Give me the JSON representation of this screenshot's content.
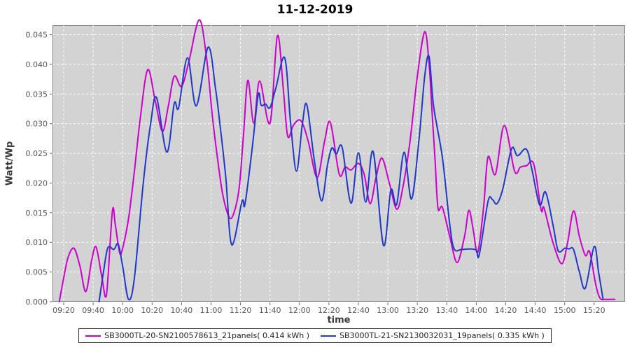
{
  "title": "11-12-2019",
  "y_axis": {
    "label": "Watt/Wp",
    "ticks": [
      "0.000",
      "0.005",
      "0.010",
      "0.015",
      "0.020",
      "0.025",
      "0.030",
      "0.035",
      "0.040",
      "0.045"
    ]
  },
  "x_axis": {
    "label": "time",
    "ticks": [
      "09:20",
      "09:40",
      "10:00",
      "10:20",
      "10:40",
      "11:00",
      "11:20",
      "11:40",
      "12:00",
      "12:20",
      "12:40",
      "13:00",
      "13:20",
      "13:40",
      "14:00",
      "14:20",
      "14:40",
      "15:00",
      "15:20"
    ]
  },
  "legend": [
    {
      "label": "SB3000TL-20-SN2100578613_21panels( 0.414 kWh )",
      "color": "#CC00CC"
    },
    {
      "label": "SB3000TL-21-SN2130032031_19panels( 0.335 kWh )",
      "color": "#2038C8"
    }
  ],
  "chart_data": {
    "type": "line",
    "title": "11-12-2019",
    "xlabel": "time",
    "ylabel": "Watt/Wp",
    "x_unit": "minutes since midnight",
    "xlim": [
      552.4,
      941
    ],
    "ylim": [
      0,
      0.0466
    ],
    "y_tick_step": 0.005,
    "x_tick_start": 560,
    "x_tick_step": 20,
    "grid": "white dashed lines on light gray plot background",
    "legend_position": "bottom center",
    "plot_bg_color": "#D3D3D3",
    "series": [
      {
        "name": "SB3000TL-20-SN2100578613_21panels( 0.414 kWh )",
        "color": "#CC00CC",
        "energy_kwh": 0.414,
        "points": [
          [
            557,
            0.0
          ],
          [
            560,
            0.004
          ],
          [
            563,
            0.0075
          ],
          [
            567,
            0.009
          ],
          [
            571,
            0.006
          ],
          [
            575,
            0.0017
          ],
          [
            579,
            0.007
          ],
          [
            582,
            0.0092
          ],
          [
            586,
            0.004
          ],
          [
            589,
            0.001
          ],
          [
            593,
            0.0152
          ],
          [
            595,
            0.013
          ],
          [
            598,
            0.0082
          ],
          [
            600,
            0.009
          ],
          [
            604,
            0.014
          ],
          [
            608,
            0.022
          ],
          [
            612,
            0.031
          ],
          [
            617,
            0.0391
          ],
          [
            622,
            0.034
          ],
          [
            627,
            0.0287
          ],
          [
            631,
            0.033
          ],
          [
            635,
            0.038
          ],
          [
            640,
            0.0363
          ],
          [
            645,
            0.0405
          ],
          [
            652,
            0.0475
          ],
          [
            657,
            0.041
          ],
          [
            661,
            0.031
          ],
          [
            665,
            0.023
          ],
          [
            668,
            0.018
          ],
          [
            672,
            0.0144
          ],
          [
            675,
            0.0146
          ],
          [
            679,
            0.019
          ],
          [
            682,
            0.028
          ],
          [
            685,
            0.0373
          ],
          [
            689,
            0.0301
          ],
          [
            693,
            0.0372
          ],
          [
            700,
            0.0301
          ],
          [
            705,
            0.0448
          ],
          [
            709,
            0.036
          ],
          [
            712,
            0.0279
          ],
          [
            716,
            0.0298
          ],
          [
            721,
            0.0305
          ],
          [
            726,
            0.027
          ],
          [
            732,
            0.0209
          ],
          [
            737,
            0.027
          ],
          [
            741,
            0.0302
          ],
          [
            747,
            0.0215
          ],
          [
            751,
            0.0227
          ],
          [
            755,
            0.0222
          ],
          [
            760,
            0.0233
          ],
          [
            764,
            0.0214
          ],
          [
            768,
            0.0165
          ],
          [
            772,
            0.021
          ],
          [
            776,
            0.0242
          ],
          [
            781,
            0.02
          ],
          [
            786,
            0.0156
          ],
          [
            790,
            0.019
          ],
          [
            795,
            0.027
          ],
          [
            800,
            0.038
          ],
          [
            805,
            0.0455
          ],
          [
            808,
            0.04
          ],
          [
            810,
            0.032
          ],
          [
            812,
            0.024
          ],
          [
            814,
            0.0158
          ],
          [
            817,
            0.0159
          ],
          [
            822,
            0.011
          ],
          [
            827,
            0.0066
          ],
          [
            832,
            0.011
          ],
          [
            835,
            0.0154
          ],
          [
            838,
            0.012
          ],
          [
            841,
            0.0083
          ],
          [
            845,
            0.016
          ],
          [
            848,
            0.0244
          ],
          [
            853,
            0.0215
          ],
          [
            859,
            0.0297
          ],
          [
            866,
            0.022
          ],
          [
            870,
            0.0227
          ],
          [
            874,
            0.0229
          ],
          [
            879,
            0.0232
          ],
          [
            884,
            0.0155
          ],
          [
            886,
            0.0158
          ],
          [
            892,
            0.01
          ],
          [
            898,
            0.0064
          ],
          [
            902,
            0.01
          ],
          [
            906,
            0.0153
          ],
          [
            910,
            0.011
          ],
          [
            914,
            0.0078
          ],
          [
            917,
            0.0084
          ],
          [
            921,
            0.003
          ],
          [
            924,
            0.0006
          ],
          [
            928,
            0.0004
          ],
          [
            934,
            0.0004
          ]
        ]
      },
      {
        "name": "SB3000TL-21-SN2130032031_19panels( 0.335 kWh )",
        "color": "#2038C8",
        "energy_kwh": 0.335,
        "points": [
          [
            584,
            0.0
          ],
          [
            587,
            0.005
          ],
          [
            590,
            0.0091
          ],
          [
            594,
            0.0088
          ],
          [
            597,
            0.0097
          ],
          [
            600,
            0.006
          ],
          [
            604,
            0.0004
          ],
          [
            608,
            0.004
          ],
          [
            614,
            0.02
          ],
          [
            619,
            0.03
          ],
          [
            623,
            0.0344
          ],
          [
            630,
            0.0252
          ],
          [
            635,
            0.0334
          ],
          [
            638,
            0.0327
          ],
          [
            644,
            0.0411
          ],
          [
            650,
            0.033
          ],
          [
            658,
            0.0429
          ],
          [
            663,
            0.036
          ],
          [
            666,
            0.03
          ],
          [
            670,
            0.021
          ],
          [
            674,
            0.0096
          ],
          [
            681,
            0.0169
          ],
          [
            683,
            0.0164
          ],
          [
            688,
            0.026
          ],
          [
            692,
            0.0349
          ],
          [
            694,
            0.0331
          ],
          [
            697,
            0.0333
          ],
          [
            700,
            0.0327
          ],
          [
            704,
            0.036
          ],
          [
            710,
            0.0411
          ],
          [
            714,
            0.03
          ],
          [
            718,
            0.022
          ],
          [
            722,
            0.03
          ],
          [
            725,
            0.0332
          ],
          [
            730,
            0.024
          ],
          [
            735,
            0.017
          ],
          [
            739,
            0.023
          ],
          [
            742,
            0.0259
          ],
          [
            745,
            0.0249
          ],
          [
            749,
            0.026
          ],
          [
            755,
            0.0166
          ],
          [
            760,
            0.0251
          ],
          [
            765,
            0.0168
          ],
          [
            770,
            0.0253
          ],
          [
            777,
            0.0095
          ],
          [
            782,
            0.0188
          ],
          [
            786,
            0.0164
          ],
          [
            791,
            0.0252
          ],
          [
            796,
            0.0173
          ],
          [
            801,
            0.027
          ],
          [
            805,
            0.038
          ],
          [
            808,
            0.0413
          ],
          [
            811,
            0.033
          ],
          [
            817,
            0.0243
          ],
          [
            822,
            0.013
          ],
          [
            825,
            0.0089
          ],
          [
            830,
            0.0088
          ],
          [
            836,
            0.0089
          ],
          [
            840,
            0.0087
          ],
          [
            842,
            0.0079
          ],
          [
            848,
            0.0169
          ],
          [
            851,
            0.0172
          ],
          [
            854,
            0.0165
          ],
          [
            858,
            0.019
          ],
          [
            864,
            0.0258
          ],
          [
            868,
            0.0246
          ],
          [
            874,
            0.0257
          ],
          [
            878,
            0.022
          ],
          [
            883,
            0.0163
          ],
          [
            887,
            0.0185
          ],
          [
            892,
            0.013
          ],
          [
            895,
            0.009
          ],
          [
            897,
            0.0084
          ],
          [
            900,
            0.009
          ],
          [
            903,
            0.0089
          ],
          [
            906,
            0.0088
          ],
          [
            910,
            0.005
          ],
          [
            914,
            0.0023
          ],
          [
            920,
            0.0093
          ],
          [
            923,
            0.005
          ],
          [
            926,
            0.0005
          ]
        ]
      }
    ]
  }
}
